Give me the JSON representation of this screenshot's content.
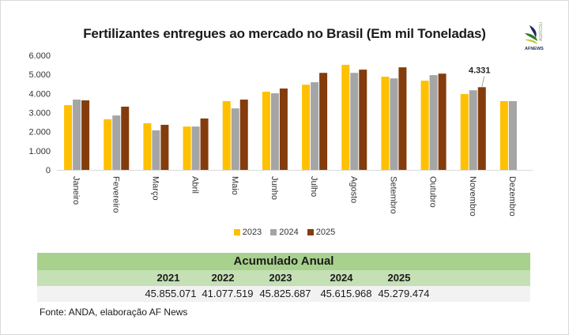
{
  "header": {
    "title": "Fertilizantes entregues ao mercado no Brasil (Em mil Toneladas)",
    "logo_text": "AFNEWS",
    "logo_subtext": "AGRÍCOLA"
  },
  "chart_data": {
    "type": "bar",
    "title": "Fertilizantes entregues ao mercado no Brasil (Em mil Toneladas)",
    "xlabel": "",
    "ylabel": "",
    "ylim": [
      0,
      6000
    ],
    "yticks": [
      0,
      1000,
      2000,
      3000,
      4000,
      5000,
      6000
    ],
    "ytick_labels": [
      "0",
      "1.000",
      "2.000",
      "3.000",
      "4.000",
      "5.000",
      "6.000"
    ],
    "grid": false,
    "legend_position": "bottom",
    "categories": [
      "Janeiro",
      "Fevereiro",
      "Março",
      "Abril",
      "Maio",
      "Junho",
      "Julho",
      "Agosto",
      "Setembro",
      "Outubro",
      "Novembro",
      "Dezembro"
    ],
    "series": [
      {
        "name": "2023",
        "color": "#ffc000",
        "values": [
          3390,
          2650,
          2440,
          2270,
          3600,
          4090,
          4460,
          5500,
          4880,
          4670,
          3970,
          3600
        ]
      },
      {
        "name": "2024",
        "color": "#a5a5a5",
        "values": [
          3680,
          2850,
          2070,
          2270,
          3220,
          4010,
          4590,
          5080,
          4790,
          4960,
          4170,
          3600
        ]
      },
      {
        "name": "2025",
        "color": "#843c0c",
        "values": [
          3640,
          3310,
          2360,
          2690,
          3680,
          4260,
          5080,
          5250,
          5370,
          5040,
          4331,
          null
        ]
      }
    ],
    "annotations": [
      {
        "series": "2025",
        "category": "Novembro",
        "text": "4.331"
      }
    ]
  },
  "table": {
    "title": "Acumulado Anual",
    "years": [
      "2021",
      "2022",
      "2023",
      "2024",
      "2025"
    ],
    "values": [
      "45.855.071",
      "41.077.519",
      "45.825.687",
      "45.615.968",
      "45.279.474"
    ]
  },
  "footer": {
    "source": "Fonte: ANDA, elaboração AF News"
  }
}
